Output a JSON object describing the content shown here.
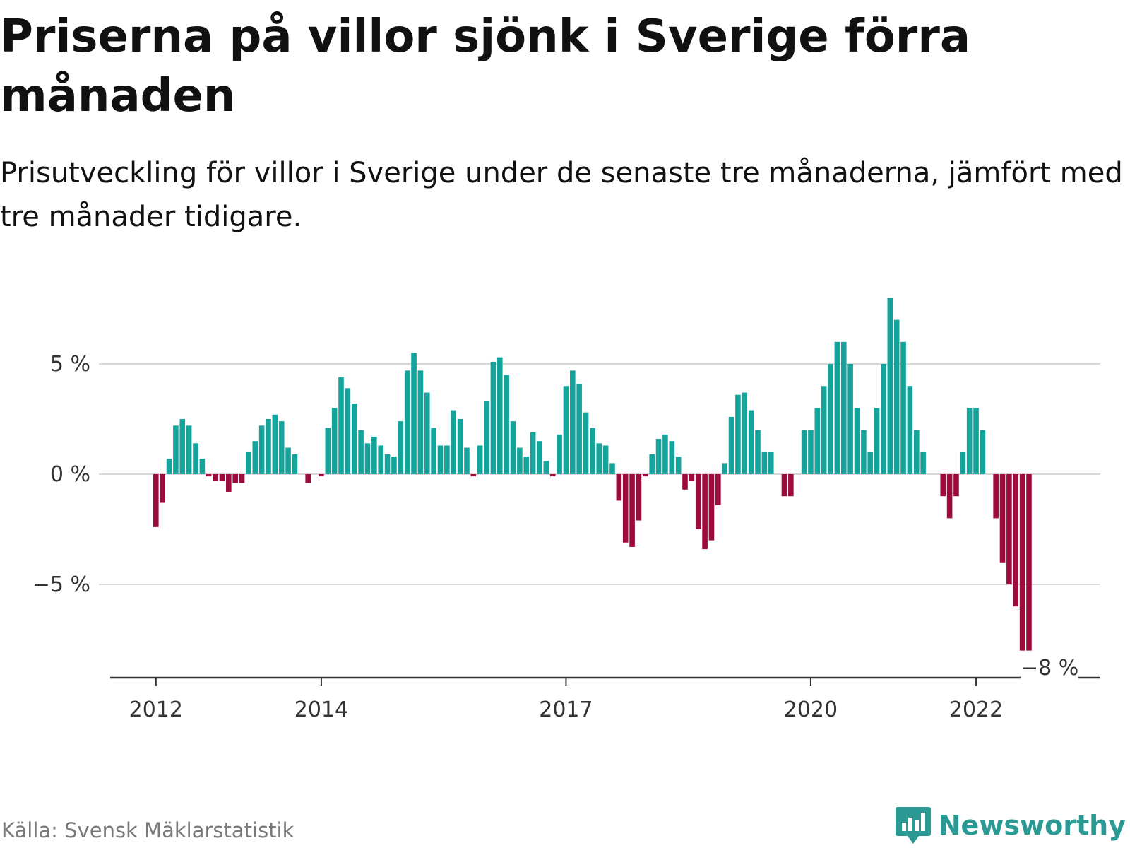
{
  "title": "Priserna på villor sjönk i Sverige förra månaden",
  "subtitle": "Prisutveckling för villor i Sverige under de senaste tre månaderna, jämfört med tre månader tidigare.",
  "source": "Källa: Svensk Mäklarstatistik",
  "brand": "Newsworthy",
  "icons": {
    "brand": "newsworthy-logo-icon"
  },
  "colors": {
    "positive": "#14a49c",
    "negative": "#9c0a3e",
    "grid": "#d9d9d9",
    "axis": "#333333"
  },
  "chart_data": {
    "type": "bar",
    "ylim": [
      -8.8,
      8.2
    ],
    "y_ticks": [
      {
        "value": 5,
        "label": "5 %"
      },
      {
        "value": 0,
        "label": "0 %"
      },
      {
        "value": -5,
        "label": "−5 %"
      }
    ],
    "x_ticks": [
      {
        "index": 0,
        "label": "2012"
      },
      {
        "index": 25,
        "label": "2014"
      },
      {
        "index": 62,
        "label": "2017"
      },
      {
        "index": 99,
        "label": "2020"
      },
      {
        "index": 124,
        "label": "2022"
      }
    ],
    "annotation": {
      "index": 135,
      "label": "−8 %"
    },
    "grid": true,
    "legend": "none",
    "values": [
      -2.4,
      -1.3,
      0.7,
      2.2,
      2.5,
      2.2,
      1.4,
      0.7,
      -0.1,
      -0.3,
      -0.3,
      -0.8,
      -0.4,
      -0.4,
      1.0,
      1.5,
      2.2,
      2.5,
      2.7,
      2.4,
      1.2,
      0.9,
      0,
      -0.4,
      0,
      -0.1,
      2.1,
      3.0,
      4.4,
      3.9,
      3.2,
      2.0,
      1.4,
      1.7,
      1.3,
      0.9,
      0.8,
      2.4,
      4.7,
      5.5,
      4.7,
      3.7,
      2.1,
      1.3,
      1.3,
      2.9,
      2.5,
      1.2,
      -0.1,
      1.3,
      3.3,
      5.1,
      5.3,
      4.5,
      2.4,
      1.2,
      0.8,
      1.9,
      1.5,
      0.6,
      -0.1,
      1.8,
      4.0,
      4.7,
      4.1,
      2.8,
      2.1,
      1.4,
      1.3,
      0.5,
      -1.2,
      -3.1,
      -3.3,
      -2.1,
      -0.1,
      0.9,
      1.6,
      1.8,
      1.5,
      0.8,
      -0.7,
      -0.3,
      -2.5,
      -3.4,
      -3.0,
      -1.4,
      0.5,
      2.6,
      3.6,
      3.7,
      2.9,
      2.0,
      1.0,
      1.0,
      0,
      -1.0,
      -1.0,
      0,
      2.0,
      2.0,
      3.0,
      4.0,
      5.0,
      6.0,
      6.0,
      5.0,
      3.0,
      2.0,
      1.0,
      3.0,
      5.0,
      8.0,
      7.0,
      6.0,
      4.0,
      2.0,
      1.0,
      0,
      0,
      -1.0,
      -2.0,
      -1.0,
      1.0,
      3.0,
      3.0,
      2.0,
      0,
      -2.0,
      -4.0,
      -5.0,
      -6.0,
      -8.0,
      -8.0
    ]
  }
}
